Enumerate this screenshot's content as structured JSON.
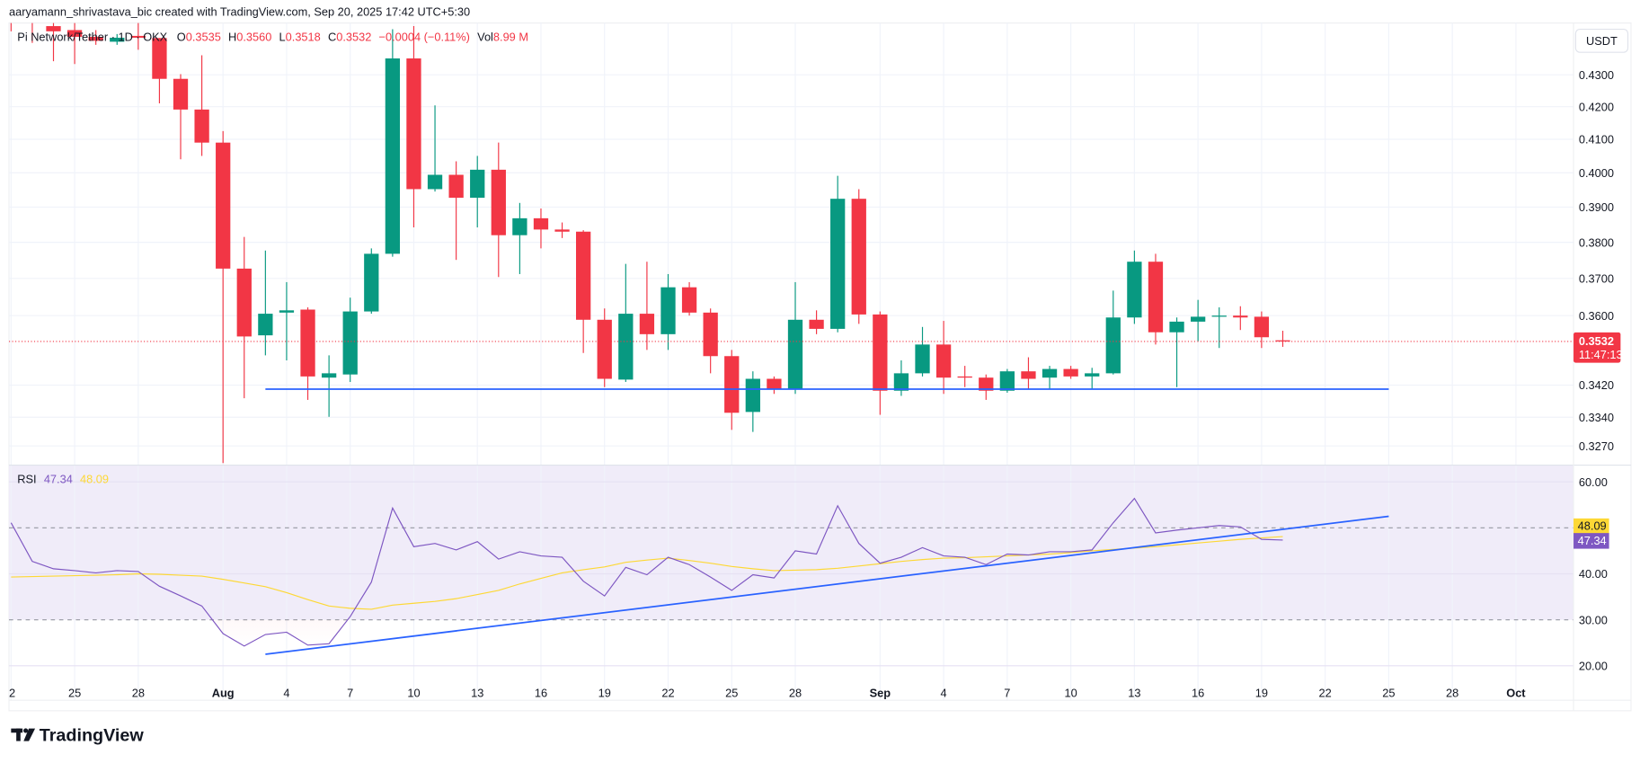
{
  "header": {
    "credit": "aaryamann_shrivastava_bic created with TradingView.com, Sep 20, 2025 17:42 UTC+5:30",
    "symbol": "Pi Network/Tether · 1D · OKX",
    "o_label": "O",
    "o_value": "0.3535",
    "h_label": "H",
    "h_value": "0.3560",
    "l_label": "L",
    "l_value": "0.3518",
    "c_label": "C",
    "c_value": "0.3532",
    "change": "−0.0004 (−0.11%)",
    "vol_label": "Vol",
    "vol_value": "8.99 M"
  },
  "price_axis": {
    "currency": "USDT",
    "scale": "log",
    "ticks": [
      "0.4300",
      "0.4200",
      "0.4100",
      "0.4000",
      "0.3900",
      "0.3800",
      "0.3700",
      "0.3600",
      "0.3420",
      "0.3340",
      "0.3270"
    ],
    "last_price": "0.3532",
    "countdown": "11:47:13"
  },
  "rsi": {
    "label": "RSI",
    "value": "47.34",
    "ma_value": "48.09",
    "ticks": [
      "60.00",
      "40.00",
      "30.00",
      "20.00"
    ]
  },
  "brand": {
    "name": "TradingView"
  },
  "colors": {
    "up": "#089981",
    "down": "#f23645",
    "rsi": "#7e57c2",
    "rsi_ma": "#fdd835",
    "trendline": "#2962ff",
    "band": "#f0ecf9"
  },
  "chart_data": [
    {
      "type": "candlestick",
      "title": "Pi Network/Tether · 1D · OKX",
      "yscale": "log",
      "start_date": "2025-07-22",
      "x_tick_labels": [
        "2",
        "25",
        "28",
        "Aug",
        "4",
        "7",
        "10",
        "13",
        "16",
        "19",
        "22",
        "25",
        "28",
        "Sep",
        "4",
        "7",
        "10",
        "13",
        "16",
        "19",
        "22",
        "25",
        "28",
        "Oct"
      ],
      "x_tick_dates": [
        "2025-07-22",
        "2025-07-25",
        "2025-07-28",
        "2025-08-01",
        "2025-08-04",
        "2025-08-07",
        "2025-08-10",
        "2025-08-13",
        "2025-08-16",
        "2025-08-19",
        "2025-08-22",
        "2025-08-25",
        "2025-08-28",
        "2025-09-01",
        "2025-09-04",
        "2025-09-07",
        "2025-09-10",
        "2025-09-13",
        "2025-09-16",
        "2025-09-19",
        "2025-09-22",
        "2025-09-25",
        "2025-09-28",
        "2025-10-01"
      ],
      "ohlc": [
        [
          "2025-07-22",
          0.448,
          0.452,
          0.444,
          0.447
        ],
        [
          "2025-07-23",
          0.448,
          0.45,
          0.4402,
          0.4475
        ],
        [
          "2025-07-24",
          0.4457,
          0.447,
          0.4343,
          0.444
        ],
        [
          "2025-07-25",
          0.4444,
          0.447,
          0.4334,
          0.4422
        ],
        [
          "2025-07-26",
          0.4422,
          0.4444,
          0.4396,
          0.4409
        ],
        [
          "2025-07-27",
          0.4406,
          0.4431,
          0.4396,
          0.4419
        ],
        [
          "2025-07-28",
          0.4425,
          0.447,
          0.438,
          0.4419
        ],
        [
          "2025-07-29",
          0.4418,
          0.4418,
          0.421,
          0.4287
        ],
        [
          "2025-07-30",
          0.4287,
          0.4302,
          0.404,
          0.4191
        ],
        [
          "2025-07-31",
          0.4191,
          0.4362,
          0.405,
          0.409
        ],
        [
          "2025-08-01",
          0.409,
          0.4125,
          0.3229,
          0.3727
        ],
        [
          "2025-08-02",
          0.3727,
          0.3815,
          0.3387,
          0.3545
        ],
        [
          "2025-08-03",
          0.3548,
          0.3777,
          0.3496,
          0.3605
        ],
        [
          "2025-08-04",
          0.3608,
          0.369,
          0.3483,
          0.3614
        ],
        [
          "2025-08-05",
          0.3616,
          0.3622,
          0.3383,
          0.3442
        ],
        [
          "2025-08-06",
          0.3439,
          0.3496,
          0.3341,
          0.345
        ],
        [
          "2025-08-07",
          0.3447,
          0.3648,
          0.3428,
          0.3611
        ],
        [
          "2025-08-08",
          0.3611,
          0.3783,
          0.3605,
          0.3768
        ],
        [
          "2025-08-09",
          0.3768,
          0.4447,
          0.376,
          0.4352
        ],
        [
          "2025-08-10",
          0.4352,
          0.4457,
          0.3842,
          0.3952
        ],
        [
          "2025-08-11",
          0.3952,
          0.4204,
          0.3945,
          0.3994
        ],
        [
          "2025-08-12",
          0.3994,
          0.4034,
          0.3751,
          0.3927
        ],
        [
          "2025-08-13",
          0.3927,
          0.405,
          0.3842,
          0.4009
        ],
        [
          "2025-08-14",
          0.4009,
          0.409,
          0.3704,
          0.382
        ],
        [
          "2025-08-15",
          0.382,
          0.3912,
          0.3712,
          0.3868
        ],
        [
          "2025-08-16",
          0.3868,
          0.3896,
          0.3783,
          0.3836
        ],
        [
          "2025-08-17",
          0.3836,
          0.3856,
          0.3812,
          0.383
        ],
        [
          "2025-08-18",
          0.383,
          0.3834,
          0.3502,
          0.3589
        ],
        [
          "2025-08-19",
          0.3589,
          0.3619,
          0.3415,
          0.3436
        ],
        [
          "2025-08-20",
          0.3434,
          0.374,
          0.3428,
          0.3605
        ],
        [
          "2025-08-21",
          0.3605,
          0.3746,
          0.351,
          0.3551
        ],
        [
          "2025-08-22",
          0.3551,
          0.3712,
          0.351,
          0.3676
        ],
        [
          "2025-08-23",
          0.3676,
          0.369,
          0.36,
          0.3608
        ],
        [
          "2025-08-24",
          0.3608,
          0.3619,
          0.345,
          0.3494
        ],
        [
          "2025-08-25",
          0.3494,
          0.351,
          0.3309,
          0.3351
        ],
        [
          "2025-08-26",
          0.3353,
          0.3455,
          0.3304,
          0.3436
        ],
        [
          "2025-08-27",
          0.3436,
          0.3442,
          0.3398,
          0.3409
        ],
        [
          "2025-08-28",
          0.3409,
          0.369,
          0.3398,
          0.3589
        ],
        [
          "2025-08-29",
          0.3589,
          0.3614,
          0.3551,
          0.3565
        ],
        [
          "2025-08-30",
          0.3565,
          0.3991,
          0.3556,
          0.3924
        ],
        [
          "2025-08-31",
          0.3924,
          0.3952,
          0.3578,
          0.3603
        ],
        [
          "2025-09-01",
          0.3603,
          0.3611,
          0.3346,
          0.3406
        ],
        [
          "2025-09-02",
          0.3406,
          0.3483,
          0.3393,
          0.345
        ],
        [
          "2025-09-03",
          0.345,
          0.357,
          0.3442,
          0.3524
        ],
        [
          "2025-09-04",
          0.3524,
          0.3586,
          0.3398,
          0.3439
        ],
        [
          "2025-09-05",
          0.3442,
          0.3469,
          0.3415,
          0.3439
        ],
        [
          "2025-09-06",
          0.3439,
          0.3447,
          0.3383,
          0.3406
        ],
        [
          "2025-09-07",
          0.3406,
          0.3461,
          0.3401,
          0.3455
        ],
        [
          "2025-09-08",
          0.3455,
          0.3491,
          0.3409,
          0.3436
        ],
        [
          "2025-09-09",
          0.3439,
          0.3469,
          0.3409,
          0.3461
        ],
        [
          "2025-09-10",
          0.3461,
          0.3469,
          0.3436,
          0.3442
        ],
        [
          "2025-09-11",
          0.3442,
          0.3464,
          0.3409,
          0.345
        ],
        [
          "2025-09-12",
          0.345,
          0.3667,
          0.3447,
          0.3595
        ],
        [
          "2025-09-13",
          0.3595,
          0.3777,
          0.3578,
          0.3746
        ],
        [
          "2025-09-14",
          0.3746,
          0.3768,
          0.3524,
          0.3556
        ],
        [
          "2025-09-15",
          0.3556,
          0.3595,
          0.3415,
          0.3584
        ],
        [
          "2025-09-16",
          0.3584,
          0.3642,
          0.3532,
          0.3597
        ],
        [
          "2025-09-17",
          0.3597,
          0.3622,
          0.3515,
          0.36
        ],
        [
          "2025-09-18",
          0.36,
          0.3625,
          0.3562,
          0.3595
        ],
        [
          "2025-09-19",
          0.3597,
          0.3611,
          0.3515,
          0.3543
        ],
        [
          "2025-09-20",
          0.3535,
          0.356,
          0.3518,
          0.3532
        ]
      ],
      "support_line": {
        "price": 0.341,
        "from": "2025-08-03",
        "to": "2025-09-25"
      },
      "last_price": 0.3532
    },
    {
      "type": "line",
      "title": "RSI",
      "ylim": [
        17,
        63.6
      ],
      "bands": [
        70,
        50,
        30
      ],
      "series": [
        {
          "name": "RSI",
          "values": [
            51.1,
            42.7,
            41.1,
            40.7,
            40.2,
            40.7,
            40.5,
            37.3,
            35.2,
            33.0,
            27.0,
            24.3,
            26.8,
            27.3,
            24.5,
            24.8,
            30.7,
            38.2,
            54.3,
            45.9,
            46.6,
            45.2,
            47.0,
            43.2,
            44.8,
            43.9,
            43.6,
            38.4,
            35.2,
            41.4,
            39.8,
            43.6,
            42.0,
            39.3,
            36.4,
            39.8,
            39.1,
            45.0,
            44.3,
            54.8,
            46.6,
            42.3,
            43.6,
            45.7,
            43.9,
            43.6,
            42.0,
            44.3,
            44.1,
            44.8,
            44.8,
            45.2,
            51.1,
            56.4,
            48.9,
            49.5,
            50.0,
            50.5,
            50.2,
            47.5,
            47.34
          ]
        },
        {
          "name": "RSI MA",
          "values": [
            39.3,
            39.4,
            39.5,
            39.6,
            39.7,
            39.8,
            40.0,
            39.9,
            39.7,
            39.5,
            38.8,
            38.0,
            37.2,
            35.9,
            34.4,
            33.0,
            32.5,
            32.3,
            33.2,
            33.6,
            34.0,
            34.6,
            35.5,
            36.4,
            37.8,
            39.0,
            40.2,
            40.9,
            41.5,
            42.5,
            43.0,
            43.4,
            42.9,
            42.3,
            41.6,
            41.1,
            40.7,
            40.8,
            40.9,
            41.2,
            41.7,
            42.2,
            42.7,
            43.1,
            43.4,
            43.5,
            43.7,
            43.9,
            44.1,
            44.3,
            44.6,
            45.0,
            45.3,
            45.6,
            45.9,
            46.3,
            46.7,
            47.1,
            47.5,
            47.8,
            48.09
          ]
        }
      ],
      "trendline": {
        "from": [
          "2025-08-03",
          22.5
        ],
        "to": [
          "2025-09-25",
          52.5
        ]
      }
    }
  ]
}
